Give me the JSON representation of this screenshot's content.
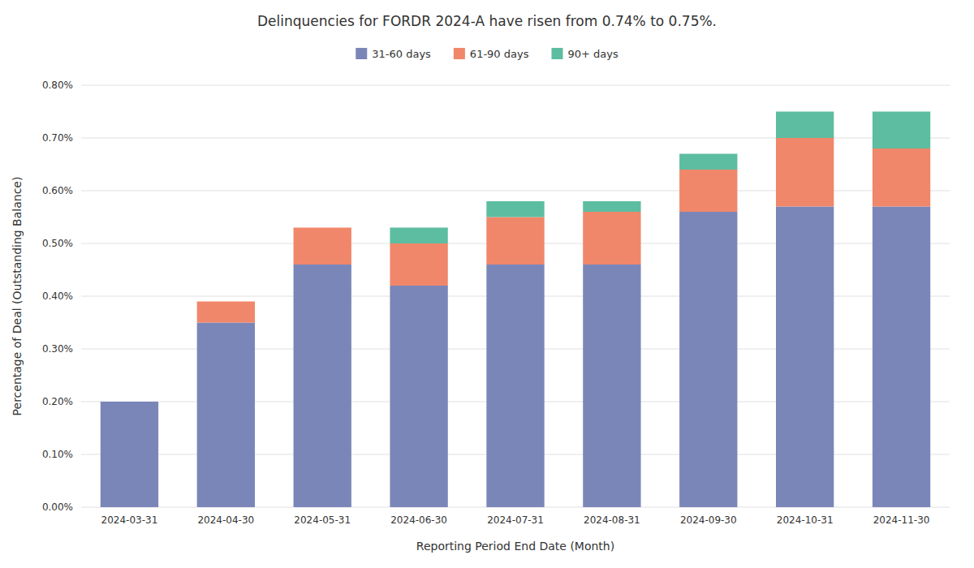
{
  "chart_data": {
    "type": "bar",
    "stacked": true,
    "title": "Delinquencies for FORDR 2024-A have risen from 0.74% to 0.75%.",
    "xlabel": "Reporting Period End Date (Month)",
    "ylabel": "Percentage of Deal (Outstanding Balance)",
    "categories": [
      "2024-03-31",
      "2024-04-30",
      "2024-05-31",
      "2024-06-30",
      "2024-07-31",
      "2024-08-31",
      "2024-09-30",
      "2024-10-31",
      "2024-11-30"
    ],
    "series": [
      {
        "name": "31-60 days",
        "color": "#7b86b8",
        "values": [
          0.002,
          0.0035,
          0.0046,
          0.0042,
          0.0046,
          0.0046,
          0.0056,
          0.0057,
          0.0057
        ]
      },
      {
        "name": "61-90 days",
        "color": "#f0876a",
        "values": [
          0.0,
          0.0004,
          0.0007,
          0.0008,
          0.0009,
          0.001,
          0.0008,
          0.0013,
          0.0011
        ]
      },
      {
        "name": "90+ days",
        "color": "#5dbda0",
        "values": [
          0.0,
          0.0,
          0.0,
          0.0003,
          0.0003,
          0.0002,
          0.0003,
          0.0005,
          0.0007
        ]
      }
    ],
    "ylim": [
      0.0,
      0.008
    ],
    "yticks": [
      {
        "value": 0.0,
        "label": "0.00%"
      },
      {
        "value": 0.001,
        "label": "0.10%"
      },
      {
        "value": 0.002,
        "label": "0.20%"
      },
      {
        "value": 0.003,
        "label": "0.30%"
      },
      {
        "value": 0.004,
        "label": "0.40%"
      },
      {
        "value": 0.005,
        "label": "0.50%"
      },
      {
        "value": 0.006,
        "label": "0.60%"
      },
      {
        "value": 0.007,
        "label": "0.70%"
      },
      {
        "value": 0.008,
        "label": "0.80%"
      }
    ],
    "grid": true,
    "legend": "top"
  }
}
